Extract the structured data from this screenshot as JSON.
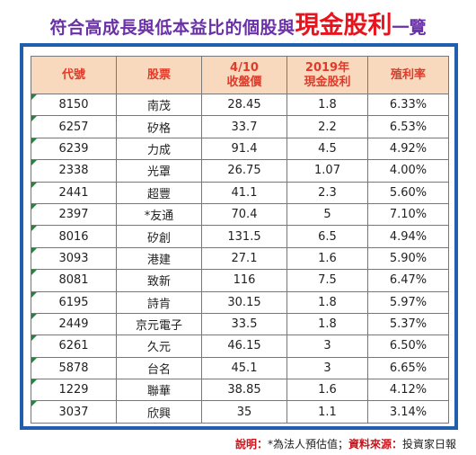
{
  "title": {
    "prefix": "符合高成長與低本益比的個股與",
    "highlight": "現金股利",
    "suffix": "一覽"
  },
  "table": {
    "headers": [
      [
        "代號"
      ],
      [
        "股票"
      ],
      [
        "4/10",
        "收盤價"
      ],
      [
        "2019年",
        "現金股利"
      ],
      [
        "殖利率"
      ]
    ],
    "rows": [
      [
        "8150",
        "南茂",
        "28.45",
        "1.8",
        "6.33%"
      ],
      [
        "6257",
        "矽格",
        "33.7",
        "2.2",
        "6.53%"
      ],
      [
        "6239",
        "力成",
        "91.4",
        "4.5",
        "4.92%"
      ],
      [
        "2338",
        "光罩",
        "26.75",
        "1.07",
        "4.00%"
      ],
      [
        "2441",
        "超豐",
        "41.1",
        "2.3",
        "5.60%"
      ],
      [
        "2397",
        "*友通",
        "70.4",
        "5",
        "7.10%"
      ],
      [
        "8016",
        "矽創",
        "131.5",
        "6.5",
        "4.94%"
      ],
      [
        "3093",
        "港建",
        "27.1",
        "1.6",
        "5.90%"
      ],
      [
        "8081",
        "致新",
        "116",
        "7.5",
        "6.47%"
      ],
      [
        "6195",
        "詩肯",
        "30.15",
        "1.8",
        "5.97%"
      ],
      [
        "2449",
        "京元電子",
        "33.5",
        "1.8",
        "5.37%"
      ],
      [
        "6261",
        "久元",
        "46.15",
        "3",
        "6.50%"
      ],
      [
        "5878",
        "台名",
        "45.1",
        "3",
        "6.65%"
      ],
      [
        "1229",
        "聯華",
        "38.85",
        "1.6",
        "4.12%"
      ],
      [
        "3037",
        "欣興",
        "35",
        "1.1",
        "3.14%"
      ]
    ]
  },
  "note": {
    "label1": "說明：",
    "text1": "*為法人預估值；",
    "label2": "資料來源：",
    "text2": "投資家日報"
  },
  "colors": {
    "title_purple": "#6a31a8",
    "title_red": "#e8141d",
    "header_bg": "#f9d9bd",
    "header_text": "#e03a2a",
    "frame_blue": "#1f5fae",
    "cell_marker_green": "#1d8a3a"
  }
}
